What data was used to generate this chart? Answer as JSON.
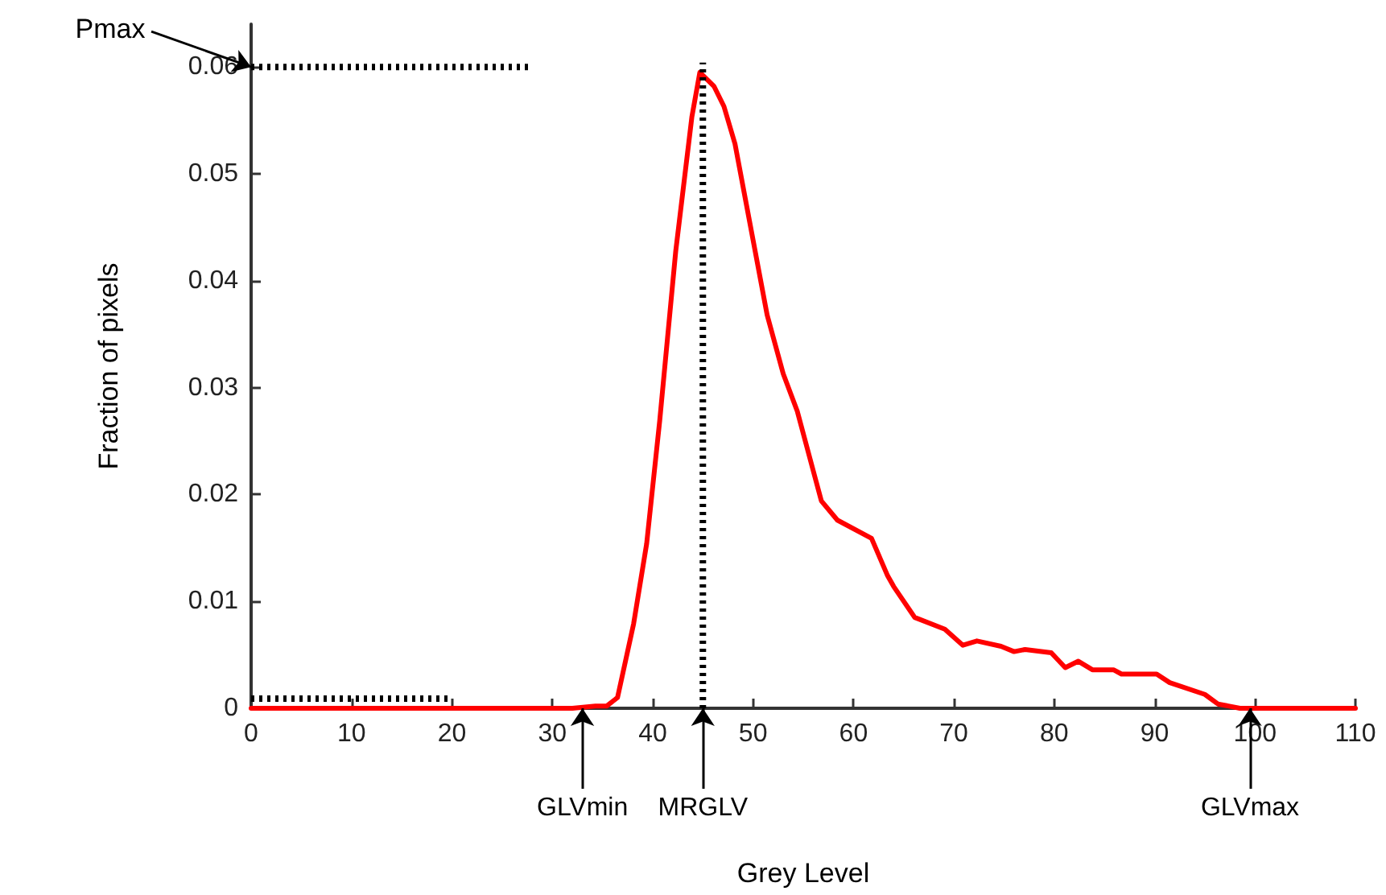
{
  "chart_data": {
    "type": "line",
    "xlabel": "Grey Level",
    "ylabel": "Fraction of pixels",
    "xlim": [
      0,
      110
    ],
    "xticks": [
      0,
      10,
      20,
      30,
      40,
      50,
      60,
      70,
      80,
      90,
      100,
      110
    ],
    "ylim": [
      0,
      0.064
    ],
    "yticks": [
      0,
      0.01,
      0.02,
      0.03,
      0.04,
      0.05,
      0.06
    ],
    "grid": false,
    "marker": "none",
    "series": [
      {
        "color": "#ff0000",
        "line_style": "solid",
        "x": [
          0,
          32,
          34.3,
          35.4,
          36.5,
          38.1,
          39.4,
          40.7,
          42.3,
          43.9,
          44.7,
          46.1,
          47.1,
          48.2,
          49.8,
          51.4,
          53.0,
          54.4,
          56.8,
          58.4,
          61.8,
          63.4,
          64.0,
          66.1,
          69.1,
          70.9,
          72.3,
          74.7,
          76.0,
          77.1,
          79.7,
          81.1,
          82.4,
          83.8,
          85.9,
          86.7,
          90.2,
          91.5,
          95.0,
          96.3,
          98.5,
          110
        ],
        "values": [
          0,
          0,
          0.0002,
          0.0002,
          0.001,
          0.0079,
          0.0154,
          0.0269,
          0.0428,
          0.0553,
          0.0595,
          0.0582,
          0.0563,
          0.0528,
          0.0448,
          0.0368,
          0.0313,
          0.0278,
          0.0194,
          0.0176,
          0.0159,
          0.0124,
          0.0114,
          0.0085,
          0.0074,
          0.0059,
          0.0063,
          0.0058,
          0.0053,
          0.0055,
          0.0052,
          0.0038,
          0.0044,
          0.0036,
          0.0036,
          0.0032,
          0.0032,
          0.0024,
          0.0013,
          0.0004,
          0,
          0
        ]
      },
      {
        "color": "#000000",
        "line_style": "dotted",
        "x": [
          45,
          45
        ],
        "values": [
          0,
          0.0604
        ]
      },
      {
        "color": "#000000",
        "line_style": "dotted",
        "x": [
          0,
          28
        ],
        "values": [
          0.06,
          0.06
        ]
      },
      {
        "color": "#000000",
        "line_style": "dotted",
        "x": [
          0,
          20
        ],
        "values": [
          0.0009,
          0.0009
        ]
      }
    ],
    "annotations": [
      {
        "text": "Pmax",
        "x": 0,
        "y": 0.06
      },
      {
        "text": "GLVmin",
        "x": 33,
        "y": 0
      },
      {
        "text": "MRGLV",
        "x": 45,
        "y": 0
      },
      {
        "text": "GLVmax",
        "x": 99.5,
        "y": 0
      }
    ]
  }
}
